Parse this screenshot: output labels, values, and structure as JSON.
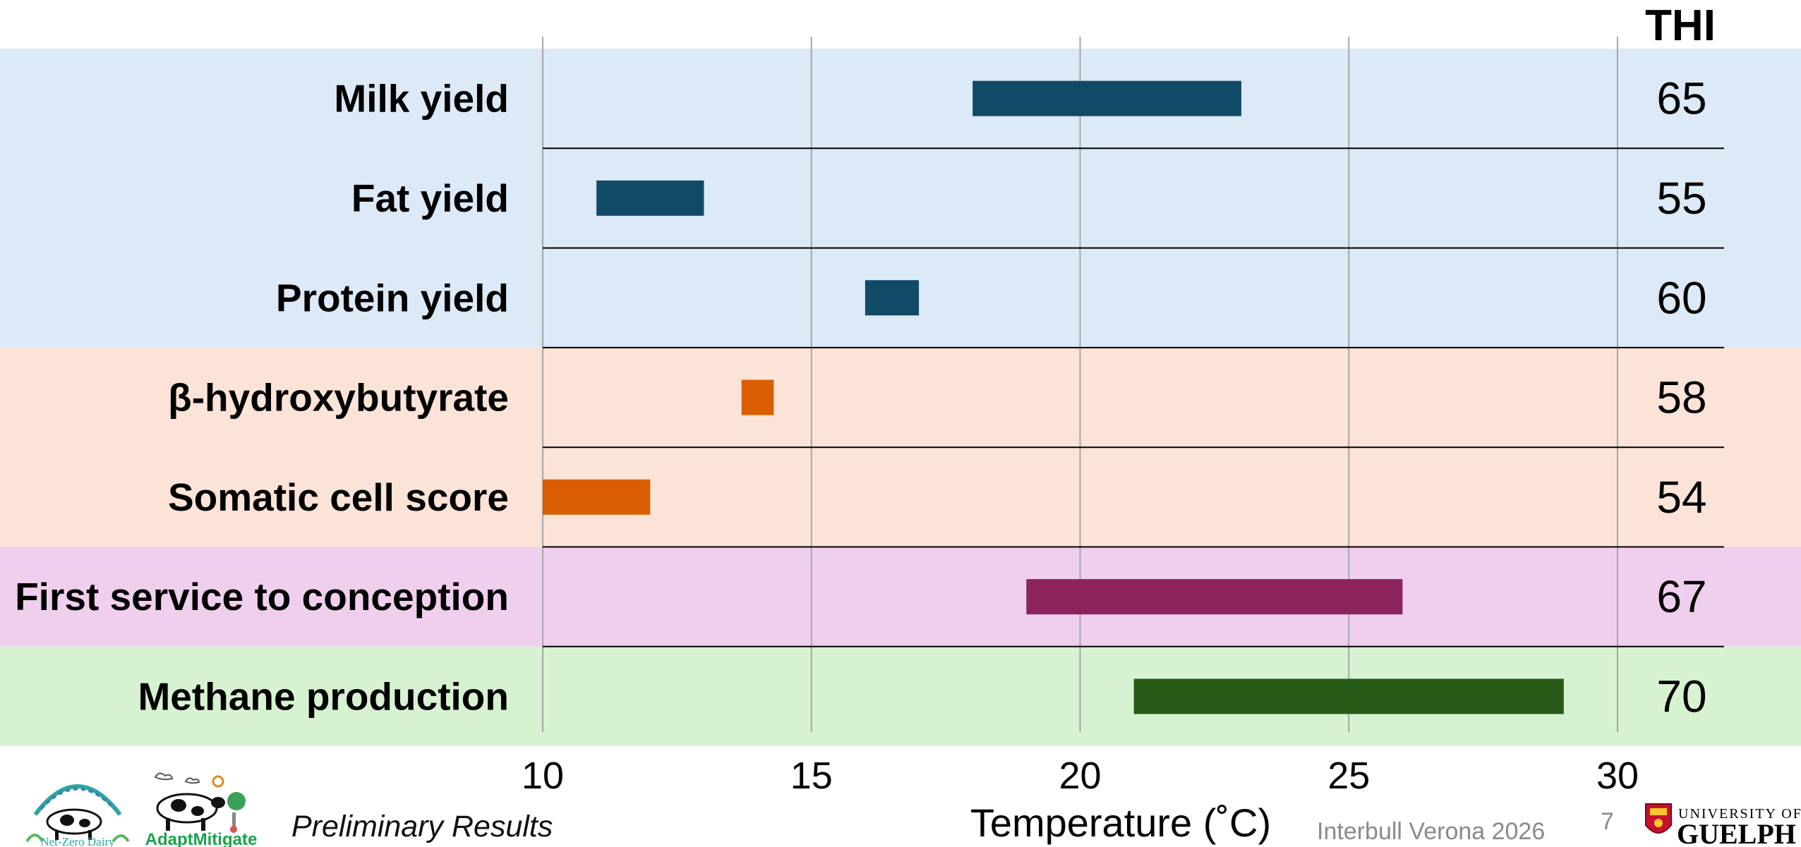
{
  "chart_data": {
    "type": "bar",
    "subtype": "floating-range",
    "xlabel": "Temperature (˚C)",
    "xlim": [
      10,
      30
    ],
    "xticks": [
      10,
      15,
      20,
      25,
      30
    ],
    "grid": true,
    "extra_column_header": "THI",
    "rows": [
      {
        "label": "Milk yield",
        "start": 18,
        "end": 23,
        "thi": "65",
        "group": "production"
      },
      {
        "label": "Fat yield",
        "start": 11,
        "end": 13,
        "thi": "55",
        "group": "production"
      },
      {
        "label": "Protein yield",
        "start": 16,
        "end": 17,
        "thi": "60",
        "group": "production"
      },
      {
        "label": "β-hydroxybutyrate",
        "start": 13.7,
        "end": 14.3,
        "thi": "58",
        "group": "health"
      },
      {
        "label": "Somatic cell score",
        "start": 10,
        "end": 12,
        "thi": "54",
        "group": "health"
      },
      {
        "label": "First service to conception",
        "start": 19,
        "end": 26,
        "thi": "67",
        "group": "fertility"
      },
      {
        "label": "Methane production",
        "start": 21,
        "end": 29,
        "thi": "70",
        "group": "environment"
      }
    ],
    "groups": {
      "production": {
        "band": "#dce9f6",
        "bar": "#114a67"
      },
      "health": {
        "band": "#fbe3d7",
        "bar": "#d95f02"
      },
      "fertility": {
        "band": "#f0cfee",
        "bar": "#8c235a"
      },
      "environment": {
        "band": "#d7f2d1",
        "bar": "#275a16"
      }
    }
  },
  "footer": {
    "preliminary": "Preliminary Results",
    "event": "Interbull Verona 2026",
    "page": "7"
  },
  "logos": {
    "net_zero_dairy": "Net-Zero Dairy",
    "adapt_mitigate": "AdaptMitigate",
    "university_of": "UNIVERSITY OF",
    "guelph": "GUELPH"
  }
}
